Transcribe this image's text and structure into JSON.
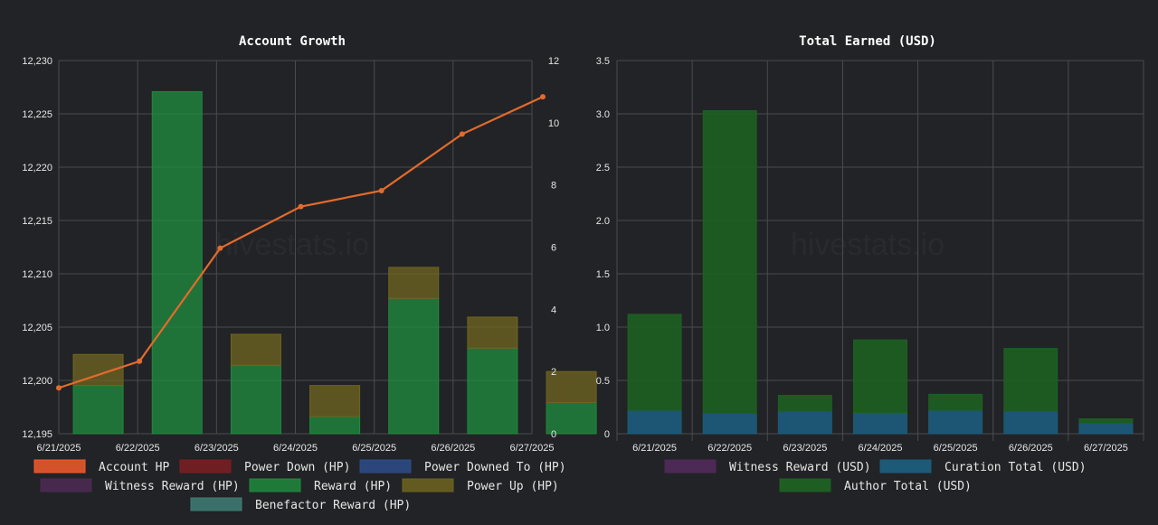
{
  "watermark": "hivestats.io",
  "chart_data": [
    {
      "type": "bar",
      "title": "Account Growth",
      "categories": [
        "6/21/2025",
        "6/22/2025",
        "6/23/2025",
        "6/24/2025",
        "6/25/2025",
        "6/26/2025",
        "6/27/2025"
      ],
      "y_left": {
        "min": 12195,
        "max": 12230,
        "ticks": [
          "12,195",
          "12,200",
          "12,205",
          "12,210",
          "12,215",
          "12,220",
          "12,225",
          "12,230"
        ]
      },
      "y_right": {
        "min": 0,
        "max": 12,
        "ticks": [
          "0",
          "2",
          "4",
          "6",
          "8",
          "10",
          "12"
        ]
      },
      "line_series": {
        "name": "Account HP",
        "axis": "left",
        "color": "#e36b2c",
        "values": [
          12199.3,
          12201.8,
          12212.4,
          12216.3,
          12217.8,
          12223.1,
          12226.6
        ]
      },
      "bar_series": [
        {
          "name": "Power Down (HP)",
          "color": "#7d1d22",
          "values": [
            0,
            0,
            0,
            0,
            0,
            0,
            0
          ]
        },
        {
          "name": "Power Downed To (HP)",
          "color": "#2d4c8b",
          "values": [
            0,
            0,
            0,
            0,
            0,
            0,
            0
          ]
        },
        {
          "name": "Witness Reward (HP)",
          "color": "#4c2a55",
          "values": [
            0,
            0,
            0,
            0,
            0,
            0,
            0
          ]
        },
        {
          "name": "Reward (HP)",
          "color": "#1f8a3e",
          "values": [
            1.55,
            11.0,
            2.2,
            0.55,
            4.35,
            2.75,
            1.0
          ]
        },
        {
          "name": "Power Up (HP)",
          "color": "#6e6420",
          "values": [
            1.0,
            0,
            1.0,
            1.0,
            1.0,
            1.0,
            1.0
          ]
        },
        {
          "name": "Benefactor Reward (HP)",
          "color": "#3f7d75",
          "values": [
            0,
            0,
            0,
            0,
            0,
            0,
            0
          ]
        }
      ],
      "legend": [
        {
          "label": "Account HP",
          "color": "#f35b2b"
        },
        {
          "label": "Power Down (HP)",
          "color": "#7d1d22"
        },
        {
          "label": "Power Downed To (HP)",
          "color": "#2d4c8b"
        },
        {
          "label": "Witness Reward (HP)",
          "color": "#4c2a55"
        },
        {
          "label": "Reward (HP)",
          "color": "#1f8a3e"
        },
        {
          "label": "Power Up (HP)",
          "color": "#6e6420"
        },
        {
          "label": "Benefactor Reward (HP)",
          "color": "#3f7d75"
        }
      ]
    },
    {
      "type": "bar",
      "title": "Total Earned (USD)",
      "categories": [
        "6/21/2025",
        "6/22/2025",
        "6/23/2025",
        "6/24/2025",
        "6/25/2025",
        "6/26/2025",
        "6/27/2025"
      ],
      "y": {
        "min": 0,
        "max": 3.5,
        "ticks": [
          "0",
          "0.5",
          "1.0",
          "1.5",
          "2.0",
          "2.5",
          "3.0",
          "3.5"
        ]
      },
      "stacked": true,
      "series": [
        {
          "name": "Witness Reward (USD)",
          "color": "#4c2a55",
          "values": [
            0,
            0,
            0,
            0,
            0,
            0,
            0
          ]
        },
        {
          "name": "Curation Total (USD)",
          "color": "#1d5a78",
          "values": [
            0.22,
            0.19,
            0.21,
            0.2,
            0.22,
            0.21,
            0.1
          ]
        },
        {
          "name": "Author Total (USD)",
          "color": "#1e5e22",
          "values": [
            0.9,
            2.84,
            0.15,
            0.68,
            0.15,
            0.59,
            0.04
          ]
        }
      ],
      "legend": [
        {
          "label": "Witness Reward (USD)",
          "color": "#4c2a55"
        },
        {
          "label": "Curation Total (USD)",
          "color": "#1d5a78"
        },
        {
          "label": "Author Total (USD)",
          "color": "#1e5e22"
        }
      ]
    }
  ]
}
